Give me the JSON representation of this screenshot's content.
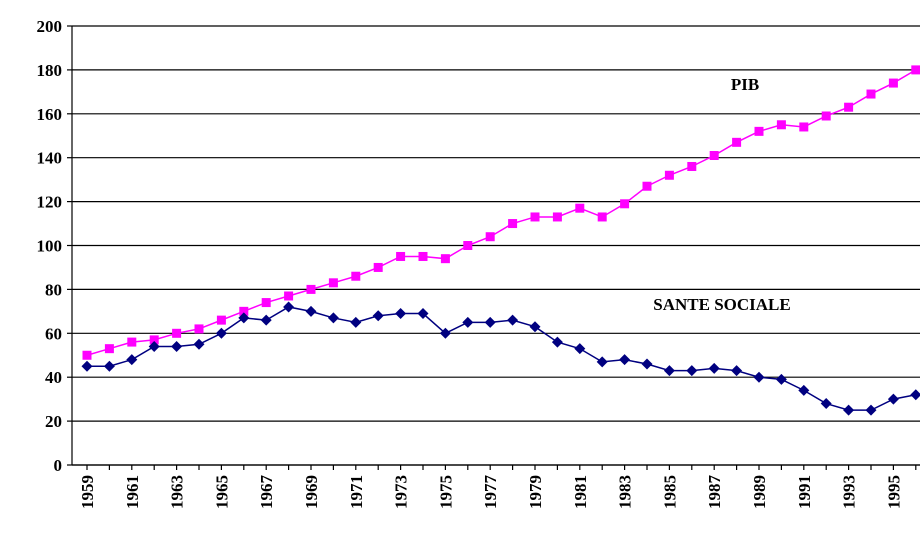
{
  "chart_data": {
    "type": "line",
    "categories": [
      "1959",
      null,
      "1961",
      null,
      "1963",
      null,
      "1965",
      null,
      "1967",
      null,
      "1969",
      null,
      "1971",
      null,
      "1973",
      null,
      "1975",
      null,
      "1977",
      null,
      "1979",
      null,
      "1981",
      null,
      "1983",
      null,
      "1985",
      null,
      "1987",
      null,
      "1989",
      null,
      "1991",
      null,
      "1993",
      null,
      "1995",
      null
    ],
    "series": [
      {
        "name": "PIB",
        "color": "#ff00ff",
        "marker": "square",
        "values": [
          50,
          53,
          56,
          57,
          60,
          62,
          66,
          70,
          74,
          77,
          80,
          83,
          86,
          90,
          95,
          95,
          94,
          100,
          104,
          110,
          113,
          113,
          117,
          113,
          119,
          127,
          132,
          136,
          141,
          147,
          152,
          155,
          154,
          159,
          163,
          169,
          174,
          180
        ]
      },
      {
        "name": "SANTE SOCIALE",
        "color": "#000080",
        "marker": "diamond",
        "values": [
          45,
          45,
          48,
          54,
          54,
          55,
          60,
          67,
          66,
          72,
          70,
          67,
          65,
          68,
          69,
          69,
          60,
          65,
          65,
          66,
          63,
          56,
          53,
          47,
          48,
          46,
          43,
          43,
          44,
          43,
          40,
          39,
          34,
          28,
          25,
          25,
          30,
          32
        ]
      }
    ],
    "ylim": [
      0,
      200
    ],
    "yticks": [
      0,
      20,
      40,
      60,
      80,
      100,
      120,
      140,
      160,
      180,
      200
    ],
    "grid": true
  }
}
